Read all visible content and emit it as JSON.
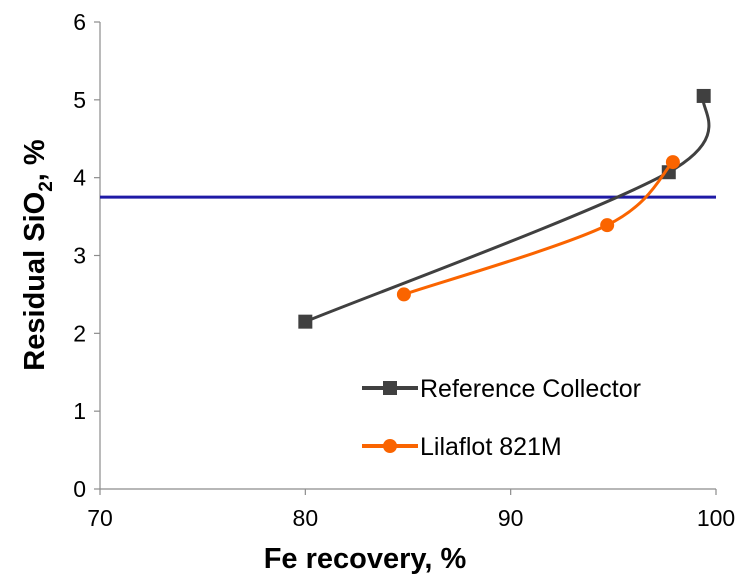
{
  "chart_data": {
    "type": "line",
    "title": "",
    "xlabel": "Fe recovery, %",
    "ylabel": {
      "main": "Residual SiO",
      "sub": "2",
      "tail": ", %"
    },
    "xlim": [
      70,
      100
    ],
    "ylim": [
      0,
      6
    ],
    "xticks": [
      "70",
      "80",
      "90",
      "100"
    ],
    "yticks": [
      "0",
      "1",
      "2",
      "3",
      "4",
      "5",
      "6"
    ],
    "grid": false,
    "legend_position": "bottom-right",
    "series": [
      {
        "name": "Reference Collector",
        "color": "#404040",
        "marker": "square",
        "smooth": true,
        "points": [
          [
            80.0,
            2.15
          ],
          [
            97.7,
            4.07
          ],
          [
            99.4,
            5.05
          ]
        ]
      },
      {
        "name": "Lilaflot 821M",
        "color": "#fa6400",
        "marker": "circle",
        "smooth": true,
        "points": [
          [
            84.8,
            2.5
          ],
          [
            94.7,
            3.39
          ],
          [
            97.9,
            4.2
          ]
        ]
      }
    ],
    "reference_line": {
      "y": 3.75,
      "color": "#1f1aa6"
    }
  }
}
